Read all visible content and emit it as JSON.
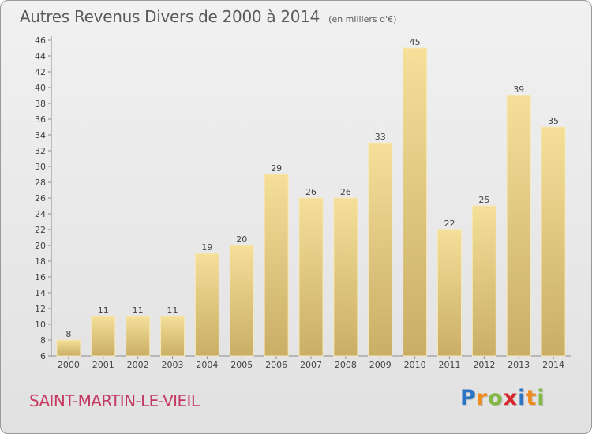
{
  "chart_data": {
    "type": "bar",
    "title": "Autres Revenus Divers de 2000 à 2014",
    "unit_label": "(en milliers d'€)",
    "categories": [
      "2000",
      "2001",
      "2002",
      "2003",
      "2004",
      "2005",
      "2006",
      "2007",
      "2008",
      "2009",
      "2010",
      "2011",
      "2012",
      "2013",
      "2014"
    ],
    "values": [
      8,
      11,
      11,
      11,
      19,
      20,
      29,
      26,
      26,
      33,
      45,
      22,
      25,
      39,
      35
    ],
    "ylim": [
      6,
      46
    ],
    "ytick_step": 2,
    "xlabel": "",
    "ylabel": "",
    "grid": false,
    "bar_color": "#e0c77c"
  },
  "commune": "SAINT-MARTIN-LE-VIEIL",
  "brand": {
    "letters": [
      "P",
      "r",
      "o",
      "x",
      "i",
      "t",
      "i"
    ],
    "colors": [
      "#2a73c5",
      "#f08a1c",
      "#7fb842",
      "#d7262b",
      "#2a73c5",
      "#f08a1c",
      "#7fb842"
    ]
  }
}
